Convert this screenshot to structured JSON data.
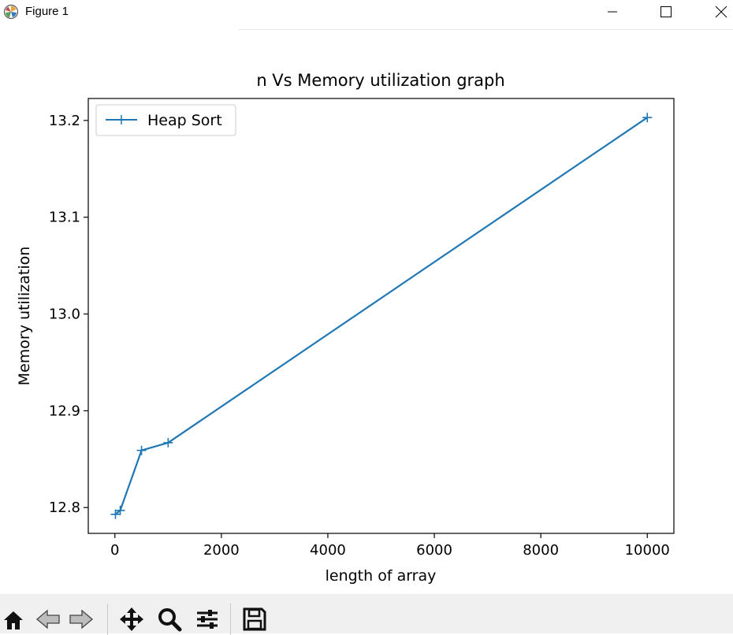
{
  "window": {
    "title": "Figure 1"
  },
  "toolbar": {
    "buttons": [
      "home-icon",
      "back-icon",
      "forward-icon",
      "pan-icon",
      "zoom-icon",
      "configure-subplots-icon",
      "save-icon"
    ]
  },
  "chart_data": {
    "type": "line",
    "title": "n Vs Memory utilization graph",
    "xlabel": "length of array",
    "ylabel": "Memory utilization",
    "xlim": [
      -500,
      10500
    ],
    "ylim": [
      12.7733,
      13.2227
    ],
    "xticks": [
      0,
      2000,
      4000,
      6000,
      8000,
      10000
    ],
    "xtick_labels": [
      "0",
      "2000",
      "4000",
      "6000",
      "8000",
      "10000"
    ],
    "yticks": [
      12.8,
      12.9,
      13.0,
      13.1,
      13.2
    ],
    "ytick_labels": [
      "12.8",
      "12.9",
      "13.0",
      "13.1",
      "13.2"
    ],
    "grid": false,
    "legend_position": "upper-left",
    "series": [
      {
        "name": "Heap Sort",
        "color": "#1f77b4",
        "marker": "+",
        "x": [
          10,
          100,
          500,
          1000,
          10000
        ],
        "y": [
          12.793,
          12.797,
          12.859,
          12.867,
          13.203
        ]
      }
    ]
  }
}
